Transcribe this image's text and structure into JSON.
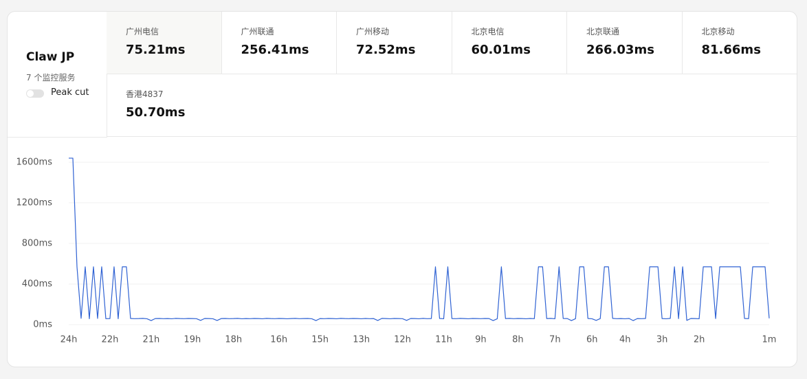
{
  "header": {
    "title": "Claw JP",
    "subtitle": "7 个监控服务",
    "toggle_label": "Peak cut"
  },
  "stats": [
    {
      "name": "广州电信",
      "value": "75.21ms"
    },
    {
      "name": "广州联通",
      "value": "256.41ms"
    },
    {
      "name": "广州移动",
      "value": "72.52ms"
    },
    {
      "name": "北京电信",
      "value": "60.01ms"
    },
    {
      "name": "北京联通",
      "value": "266.03ms"
    },
    {
      "name": "北京移动",
      "value": "81.66ms"
    },
    {
      "name": "香港4837",
      "value": "50.70ms"
    }
  ],
  "chart_data": {
    "type": "line",
    "color": "#2f62d3",
    "grid": true,
    "xlim": [
      0,
      170
    ],
    "xticks": [
      {
        "value": 0,
        "label": "24h"
      },
      {
        "value": 10,
        "label": "22h"
      },
      {
        "value": 20,
        "label": "21h"
      },
      {
        "value": 30,
        "label": "19h"
      },
      {
        "value": 40,
        "label": "18h"
      },
      {
        "value": 51,
        "label": "16h"
      },
      {
        "value": 61,
        "label": "15h"
      },
      {
        "value": 71,
        "label": "13h"
      },
      {
        "value": 81,
        "label": "12h"
      },
      {
        "value": 91,
        "label": "11h"
      },
      {
        "value": 100,
        "label": "9h"
      },
      {
        "value": 109,
        "label": "8h"
      },
      {
        "value": 118,
        "label": "7h"
      },
      {
        "value": 127,
        "label": "6h"
      },
      {
        "value": 135,
        "label": "4h"
      },
      {
        "value": 144,
        "label": "3h"
      },
      {
        "value": 153,
        "label": "2h"
      },
      {
        "value": 170,
        "label": "1m"
      }
    ],
    "ylim": [
      0,
      1660
    ],
    "yticks": [
      {
        "value": 0,
        "label": "0ms"
      },
      {
        "value": 400,
        "label": "400ms"
      },
      {
        "value": 800,
        "label": "800ms"
      },
      {
        "value": 1200,
        "label": "1200ms"
      },
      {
        "value": 1600,
        "label": "1600ms"
      }
    ],
    "values": [
      1640,
      1640,
      570,
      62,
      570,
      58,
      570,
      61,
      570,
      59,
      60,
      570,
      58,
      570,
      570,
      61,
      59,
      60,
      62,
      58,
      40,
      60,
      61,
      59,
      60,
      58,
      62,
      60,
      59,
      61,
      60,
      59,
      42,
      61,
      60,
      58,
      41,
      60,
      61,
      59,
      60,
      62,
      58,
      60,
      59,
      61,
      60,
      58,
      62,
      60,
      59,
      61,
      60,
      58,
      60,
      62,
      59,
      60,
      61,
      58,
      40,
      60,
      59,
      61,
      60,
      58,
      62,
      60,
      59,
      61,
      60,
      58,
      61,
      59,
      60,
      41,
      62,
      60,
      58,
      61,
      60,
      59,
      42,
      61,
      60,
      58,
      62,
      59,
      60,
      570,
      61,
      58,
      570,
      60,
      59,
      62,
      60,
      58,
      61,
      60,
      59,
      61,
      60,
      40,
      58,
      570,
      60,
      62,
      59,
      61,
      60,
      58,
      61,
      59,
      570,
      570,
      60,
      62,
      58,
      570,
      61,
      60,
      40,
      59,
      570,
      570,
      61,
      58,
      42,
      60,
      570,
      570,
      62,
      59,
      60,
      58,
      61,
      40,
      60,
      59,
      61,
      570,
      570,
      570,
      60,
      58,
      62,
      570,
      59,
      570,
      42,
      61,
      60,
      58,
      570,
      570,
      570,
      60,
      570,
      570,
      570,
      570,
      570,
      570,
      61,
      59,
      570,
      570,
      570,
      570,
      62
    ]
  }
}
